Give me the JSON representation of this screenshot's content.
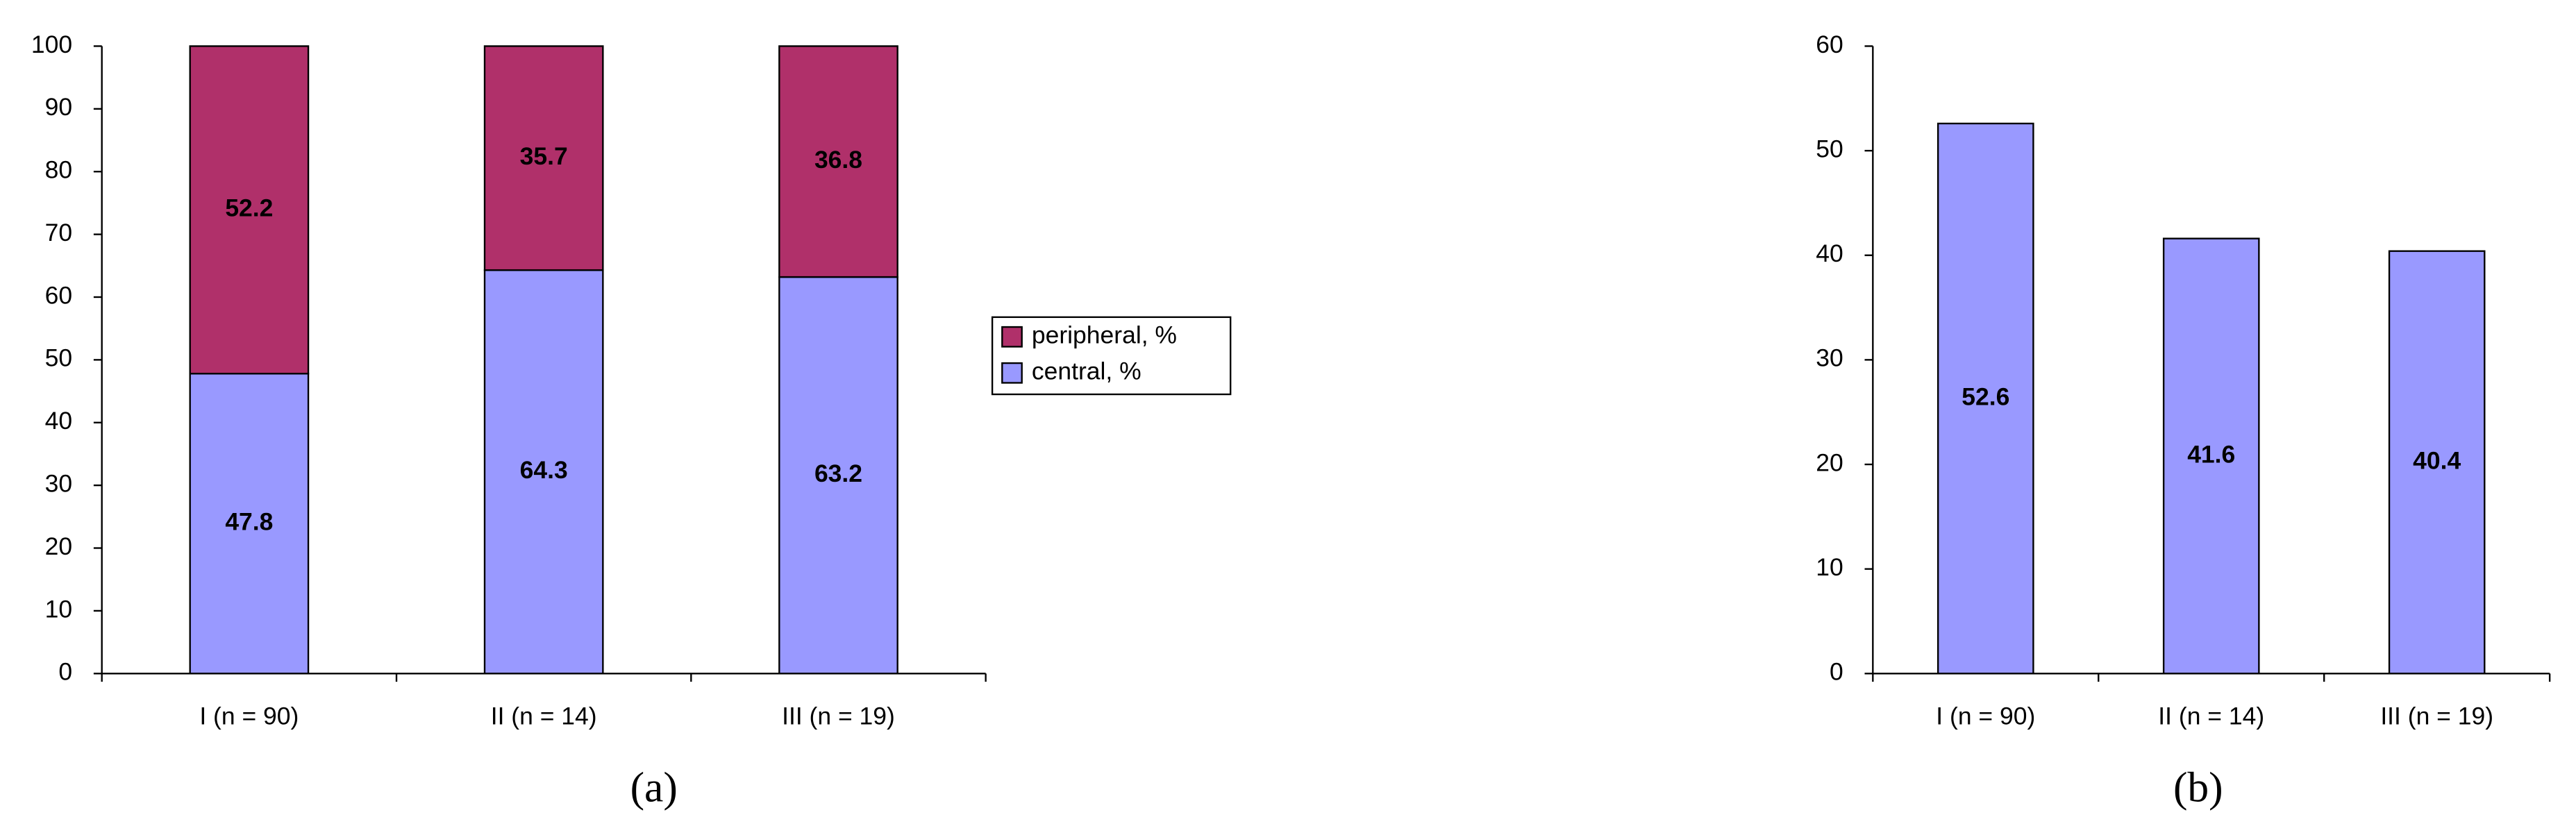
{
  "chart_data": [
    {
      "type": "stacked_bar",
      "panel_label": "(a)",
      "categories": [
        "I (n = 90)",
        "II (n = 14)",
        "III (n = 19)"
      ],
      "series": [
        {
          "name": "central, %",
          "color": "#9999ff",
          "values": [
            47.8,
            64.3,
            63.2
          ]
        },
        {
          "name": "peripheral, %",
          "color": "#b0306a",
          "values": [
            52.2,
            35.7,
            36.8
          ]
        }
      ],
      "ylim": [
        0,
        100
      ],
      "yticks": [
        0,
        10,
        20,
        30,
        40,
        50,
        60,
        70,
        80,
        90,
        100
      ],
      "legend": "right",
      "grid": false
    },
    {
      "type": "bar",
      "panel_label": "(b)",
      "categories": [
        "I (n = 90)",
        "II (n = 14)",
        "III (n = 19)"
      ],
      "values": [
        52.6,
        41.6,
        40.4
      ],
      "color": "#9999ff",
      "ylim": [
        0,
        60
      ],
      "yticks": [
        0,
        10,
        20,
        30,
        40,
        50,
        60
      ],
      "grid": false
    }
  ]
}
